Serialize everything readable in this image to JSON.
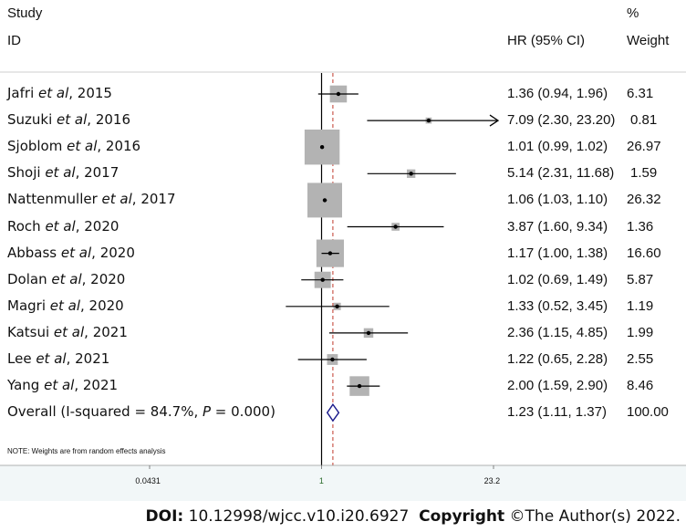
{
  "header": {
    "study_line1": "Study",
    "study_line2": "ID",
    "hr_label": "HR (95% CI)",
    "weight_line1": "%",
    "weight_line2": "Weight"
  },
  "chart_data": {
    "type": "forest",
    "x_scale": "log",
    "xlim": [
      0.0431,
      23.2
    ],
    "null_value": 1,
    "pooled_reference_line": 1.23,
    "ticks": [
      "0.0431",
      "1",
      "23.2"
    ],
    "studies": [
      {
        "name": "Jafri",
        "etal": "et al",
        "year": ", 2015",
        "hr": 1.36,
        "lo": 0.94,
        "hi": 1.96,
        "ci_text": "1.36 (0.94, 1.96)",
        "weight": 6.31,
        "weight_text": "6.31",
        "arrow": false
      },
      {
        "name": "Suzuki",
        "etal": "et al",
        "year": ", 2016",
        "hr": 7.09,
        "lo": 2.3,
        "hi": 23.2,
        "ci_text": "7.09 (2.30, 23.20)",
        "weight": 0.81,
        "weight_text": "0.81",
        "arrow": true
      },
      {
        "name": "Sjoblom",
        "etal": "et al",
        "year": ", 2016",
        "hr": 1.01,
        "lo": 0.99,
        "hi": 1.02,
        "ci_text": "1.01 (0.99, 1.02)",
        "weight": 26.97,
        "weight_text": "26.97",
        "arrow": false
      },
      {
        "name": "Shoji",
        "etal": "et al",
        "year": ", 2017",
        "hr": 5.14,
        "lo": 2.31,
        "hi": 11.68,
        "ci_text": "5.14 (2.31, 11.68)",
        "weight": 1.59,
        "weight_text": "1.59",
        "arrow": false
      },
      {
        "name": "Nattenmuller",
        "etal": "et al",
        "year": ", 2017",
        "hr": 1.06,
        "lo": 1.03,
        "hi": 1.1,
        "ci_text": "1.06 (1.03, 1.10)",
        "weight": 26.32,
        "weight_text": "26.32",
        "arrow": false
      },
      {
        "name": "Roch",
        "etal": "et al",
        "year": ", 2020",
        "hr": 3.87,
        "lo": 1.6,
        "hi": 9.34,
        "ci_text": "3.87 (1.60, 9.34)",
        "weight": 1.36,
        "weight_text": "1.36",
        "arrow": false
      },
      {
        "name": "Abbass",
        "etal": "et al",
        "year": ", 2020",
        "hr": 1.17,
        "lo": 1.0,
        "hi": 1.38,
        "ci_text": "1.17 (1.00, 1.38)",
        "weight": 16.6,
        "weight_text": "16.60",
        "arrow": false
      },
      {
        "name": "Dolan",
        "etal": "et al",
        "year": ", 2020",
        "hr": 1.02,
        "lo": 0.69,
        "hi": 1.49,
        "ci_text": "1.02 (0.69, 1.49)",
        "weight": 5.87,
        "weight_text": "5.87",
        "arrow": false
      },
      {
        "name": "Magri",
        "etal": "et al",
        "year": ", 2020",
        "hr": 1.33,
        "lo": 0.52,
        "hi": 3.45,
        "ci_text": "1.33 (0.52, 3.45)",
        "weight": 1.19,
        "weight_text": "1.19",
        "arrow": false
      },
      {
        "name": "Katsui",
        "etal": "et al",
        "year": ", 2021",
        "hr": 2.36,
        "lo": 1.15,
        "hi": 4.85,
        "ci_text": "2.36 (1.15, 4.85)",
        "weight": 1.99,
        "weight_text": "1.99",
        "arrow": false
      },
      {
        "name": "Lee",
        "etal": "et al",
        "year": ", 2021",
        "hr": 1.22,
        "lo": 0.65,
        "hi": 2.28,
        "ci_text": "1.22 (0.65, 2.28)",
        "weight": 2.55,
        "weight_text": "2.55",
        "arrow": false
      },
      {
        "name": "Yang",
        "etal": "et al",
        "year": ", 2021",
        "hr": 2.0,
        "lo": 1.59,
        "hi": 2.9,
        "ci_text": "2.00 (1.59, 2.90)",
        "weight": 8.46,
        "weight_text": "8.46",
        "arrow": false
      }
    ],
    "overall": {
      "label_prefix": "Overall (I-squared = 84.7%, ",
      "label_p": "P",
      "label_suffix": " = 0.000)",
      "hr": 1.23,
      "lo": 1.11,
      "hi": 1.37,
      "ci_text": "1.23 (1.11, 1.37)",
      "weight_text": "100.00"
    },
    "note": "NOTE: Weights are from random effects analysis",
    "colors": {
      "box": "#b3b3b3",
      "diamond": "#1a1a8c",
      "ref_line": "#c0392b",
      "null_line": "#000000"
    }
  },
  "footer": {
    "doi_label": "DOI:",
    "doi_value": " 10.12998/wjcc.v10.i20.6927",
    "copyright_label": "Copyright",
    "copyright_value": " ©The Author(s) 2022."
  }
}
